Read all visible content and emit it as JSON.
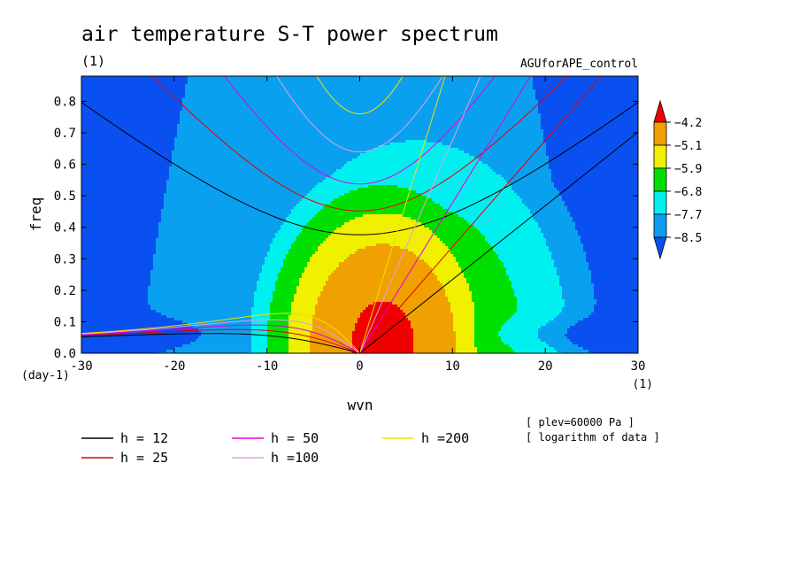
{
  "chart_data": {
    "type": "heatmap",
    "title": "air temperature S-T power spectrum",
    "subtitle_units": "(1)",
    "experiment": "AGUforAPE_control",
    "xlabel": "wvn",
    "ylabel": "freq",
    "x_units": "(1)",
    "y_units": "(day-1)",
    "xlim": [
      -30,
      30
    ],
    "ylim": [
      0,
      0.88
    ],
    "xticks": [
      -30,
      -20,
      -10,
      0,
      10,
      20,
      30
    ],
    "yticks": [
      0.0,
      0.1,
      0.2,
      0.3,
      0.4,
      0.5,
      0.6,
      0.7,
      0.8
    ],
    "notes": [
      "[ plev=60000 Pa ]",
      "[ logarithm of data ]"
    ],
    "colorbar": {
      "levels": [
        -8.5,
        -7.7,
        -6.8,
        -5.9,
        -5.1,
        -4.2
      ],
      "colors": [
        "#0a50f0",
        "#0aa0f0",
        "#00f0f0",
        "#00e000",
        "#f0f000",
        "#f0a000",
        "#f00000"
      ],
      "extend": "both"
    },
    "dispersion_curves": [
      {
        "name": "h = 12",
        "h": 12,
        "color": "#000000"
      },
      {
        "name": "h = 25",
        "h": 25,
        "color": "#e00000"
      },
      {
        "name": "h = 50",
        "h": 50,
        "color": "#e000e0"
      },
      {
        "name": "h =100",
        "h": 100,
        "color": "#e0a0e0"
      },
      {
        "name": "h =200",
        "h": 200,
        "color": "#f0e000"
      }
    ]
  }
}
